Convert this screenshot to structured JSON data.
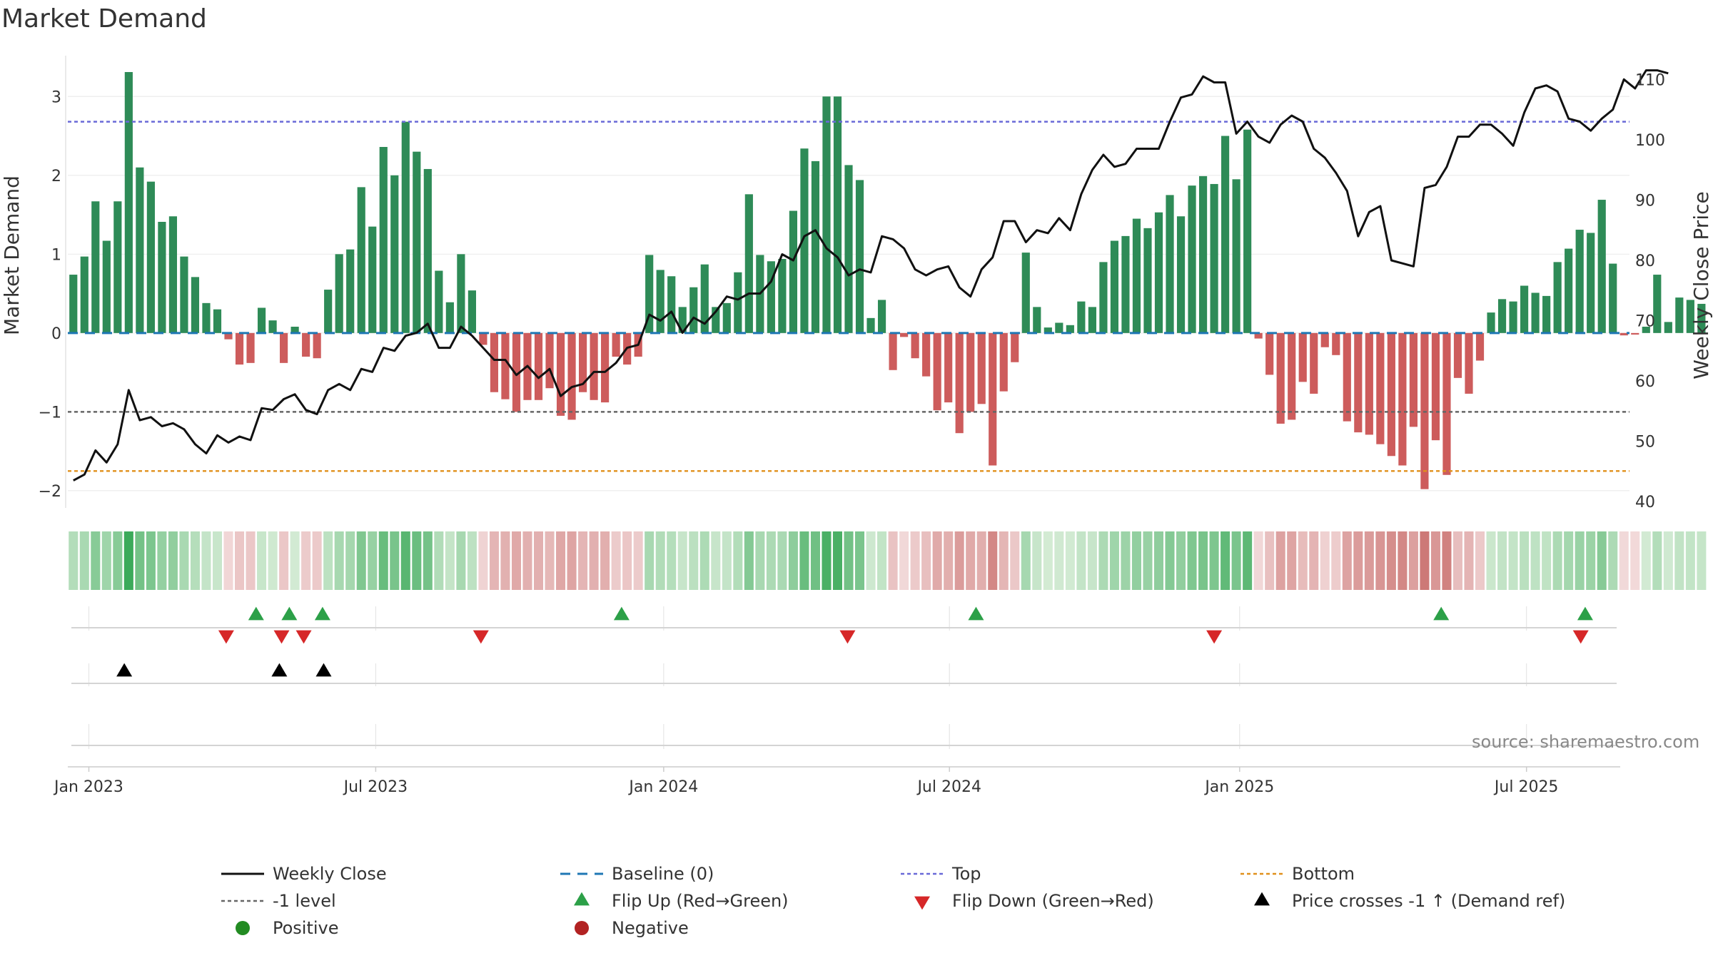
{
  "chart_data": {
    "type": "bar",
    "title": "Market Demand",
    "ylabel": "Market Demand",
    "y2label": "Weekly Close Price",
    "ylim": [
      -2.2,
      3.5
    ],
    "y2lim": [
      39.2,
      113.7
    ],
    "yticks": [
      -2,
      -1,
      0,
      1,
      2,
      3
    ],
    "yticklabels": [
      "−2",
      "−1",
      "0",
      "1",
      "2",
      "3"
    ],
    "y2ticks": [
      40,
      50,
      60,
      70,
      80,
      90,
      100,
      110
    ],
    "y2ticklabels": [
      "40",
      "50",
      "60",
      "70",
      "80",
      "90",
      "100",
      "110"
    ],
    "start_week": 0,
    "n_weeks": 141,
    "xticks": [
      {
        "label": "Jan 2023",
        "week": 1.4
      },
      {
        "label": "Jul 2023",
        "week": 27.3
      },
      {
        "label": "Jan 2024",
        "week": 53.3
      },
      {
        "label": "Jul 2024",
        "week": 79.1
      },
      {
        "label": "Jan 2025",
        "week": 105.3
      },
      {
        "label": "Jul 2025",
        "week": 131.2
      }
    ],
    "levels": {
      "top": 2.68,
      "bottom": -1.75,
      "minus_one": -1,
      "baseline": 0
    },
    "demand": [
      0.74,
      0.97,
      1.67,
      1.17,
      1.67,
      3.31,
      2.1,
      1.92,
      1.41,
      1.48,
      0.97,
      0.71,
      0.38,
      0.3,
      -0.08,
      -0.4,
      -0.38,
      0.32,
      0.16,
      -0.38,
      0.08,
      -0.3,
      -0.32,
      0.55,
      1.0,
      1.06,
      1.85,
      1.35,
      2.36,
      2.0,
      2.68,
      2.3,
      2.08,
      0.79,
      0.39,
      1.0,
      0.54,
      -0.15,
      -0.75,
      -0.84,
      -1.0,
      -0.85,
      -0.85,
      -0.7,
      -1.05,
      -1.1,
      -0.75,
      -0.85,
      -0.88,
      -0.3,
      -0.4,
      -0.3,
      0.99,
      0.8,
      0.72,
      0.33,
      0.58,
      0.87,
      0.33,
      0.38,
      0.77,
      1.76,
      0.99,
      0.91,
      0.94,
      1.55,
      2.34,
      2.18,
      3.0,
      3.0,
      2.13,
      1.94,
      0.19,
      0.42,
      -0.47,
      -0.05,
      -0.32,
      -0.55,
      -0.98,
      -0.88,
      -1.27,
      -1.0,
      -0.9,
      -1.68,
      -0.74,
      -0.37,
      1.02,
      0.33,
      0.07,
      0.13,
      0.1,
      0.4,
      0.33,
      0.9,
      1.17,
      1.23,
      1.45,
      1.33,
      1.53,
      1.75,
      1.48,
      1.87,
      1.99,
      1.89,
      2.5,
      1.95,
      2.58,
      -0.07,
      -0.53,
      -1.15,
      -1.1,
      -0.62,
      -0.77,
      -0.18,
      -0.28,
      -1.12,
      -1.26,
      -1.29,
      -1.41,
      -1.56,
      -1.68,
      -1.19,
      -1.98,
      -1.36,
      -1.8,
      -0.57,
      -0.77,
      -0.35,
      0.26,
      0.43,
      0.4,
      0.6,
      0.51,
      0.47,
      0.9,
      1.07,
      1.31,
      1.27,
      1.69,
      0.88,
      -0.03,
      -0.02,
      0.08,
      0.74,
      0.14,
      0.45,
      0.42,
      0.37
    ],
    "close": [
      43.5,
      44.5,
      48.5,
      46.5,
      49.5,
      58.5,
      53.5,
      54.0,
      52.5,
      53.0,
      52.0,
      49.5,
      48.0,
      51.0,
      49.8,
      50.8,
      50.2,
      55.5,
      55.2,
      57.0,
      57.8,
      55.2,
      54.5,
      58.5,
      59.5,
      58.5,
      62.0,
      61.5,
      65.5,
      65.0,
      67.5,
      68.0,
      69.5,
      65.5,
      65.5,
      69.0,
      67.5,
      65.5,
      63.5,
      63.5,
      61.0,
      62.5,
      60.5,
      62.0,
      57.5,
      59.0,
      59.5,
      61.5,
      61.5,
      63.0,
      65.5,
      66.0,
      71.0,
      70.0,
      71.5,
      68.0,
      70.5,
      69.5,
      71.5,
      74.0,
      73.5,
      74.5,
      74.5,
      76.5,
      81.0,
      80.0,
      84.0,
      85.0,
      82.0,
      80.5,
      77.5,
      78.5,
      78.0,
      84.0,
      83.5,
      82.0,
      78.5,
      77.5,
      78.5,
      79.0,
      75.5,
      74.0,
      78.5,
      80.5,
      86.5,
      86.5,
      83.0,
      85.0,
      84.5,
      87.0,
      85.0,
      91.0,
      95.0,
      97.5,
      95.5,
      96.0,
      98.5,
      98.5,
      98.5,
      103.0,
      107.0,
      107.5,
      110.5,
      109.5,
      109.5,
      101.0,
      103.0,
      100.5,
      99.5,
      102.5,
      104.0,
      103.0,
      98.5,
      97.0,
      94.5,
      91.5,
      84.0,
      88.0,
      89.0,
      80.0,
      79.5,
      79.0,
      92.0,
      92.5,
      95.5,
      100.5,
      100.5,
      102.5,
      102.5,
      101.0,
      99.0,
      104.5,
      108.5,
      109.0,
      108.0,
      103.5,
      103.0,
      101.5,
      103.5,
      105.0,
      110.0,
      108.5,
      111.5,
      111.5,
      111.0
    ],
    "events": {
      "flip_up": [
        16.5,
        19.5,
        22.5,
        49.5,
        81.5,
        123.5,
        136.5
      ],
      "flip_down": [
        13.8,
        18.8,
        20.8,
        36.8,
        69.9,
        103.0,
        136.1
      ],
      "price_cross": [
        4.6,
        18.6,
        22.6
      ]
    }
  },
  "legend": {
    "items": [
      {
        "label": "Weekly Close",
        "symbol": "line-solid",
        "color": "#111111"
      },
      {
        "label": "Baseline (0)",
        "symbol": "line-dash",
        "color": "#1f77b4"
      },
      {
        "label": "Top",
        "symbol": "line-dot",
        "color": "#6a6ad8"
      },
      {
        "label": "Bottom",
        "symbol": "line-dot",
        "color": "#e0901c"
      },
      {
        "label": "-1 level",
        "symbol": "line-dot",
        "color": "#666666"
      },
      {
        "label": "Flip Up (Red→Green)",
        "symbol": "triangle-up",
        "color": "#2ca048"
      },
      {
        "label": "Flip Down (Green→Red)",
        "symbol": "triangle-down",
        "color": "#d62728"
      },
      {
        "label": "Price crosses -1 ↑ (Demand ref)",
        "symbol": "triangle-up",
        "color": "#000000"
      },
      {
        "label": "Positive",
        "symbol": "circle",
        "color": "#228b22"
      },
      {
        "label": "Negative",
        "symbol": "circle",
        "color": "#b22222"
      }
    ]
  },
  "source": "source: sharemaestro.com",
  "colors": {
    "positive_bar": "#2e8b57",
    "negative_bar": "#cd5c5c",
    "price_line": "#111111",
    "baseline": "#1f77b4",
    "top": "#6a6ad8",
    "bottom": "#e0901c",
    "minus_one": "#666666",
    "flip_up": "#2ca048",
    "flip_down": "#d62728",
    "price_cross": "#000000"
  }
}
